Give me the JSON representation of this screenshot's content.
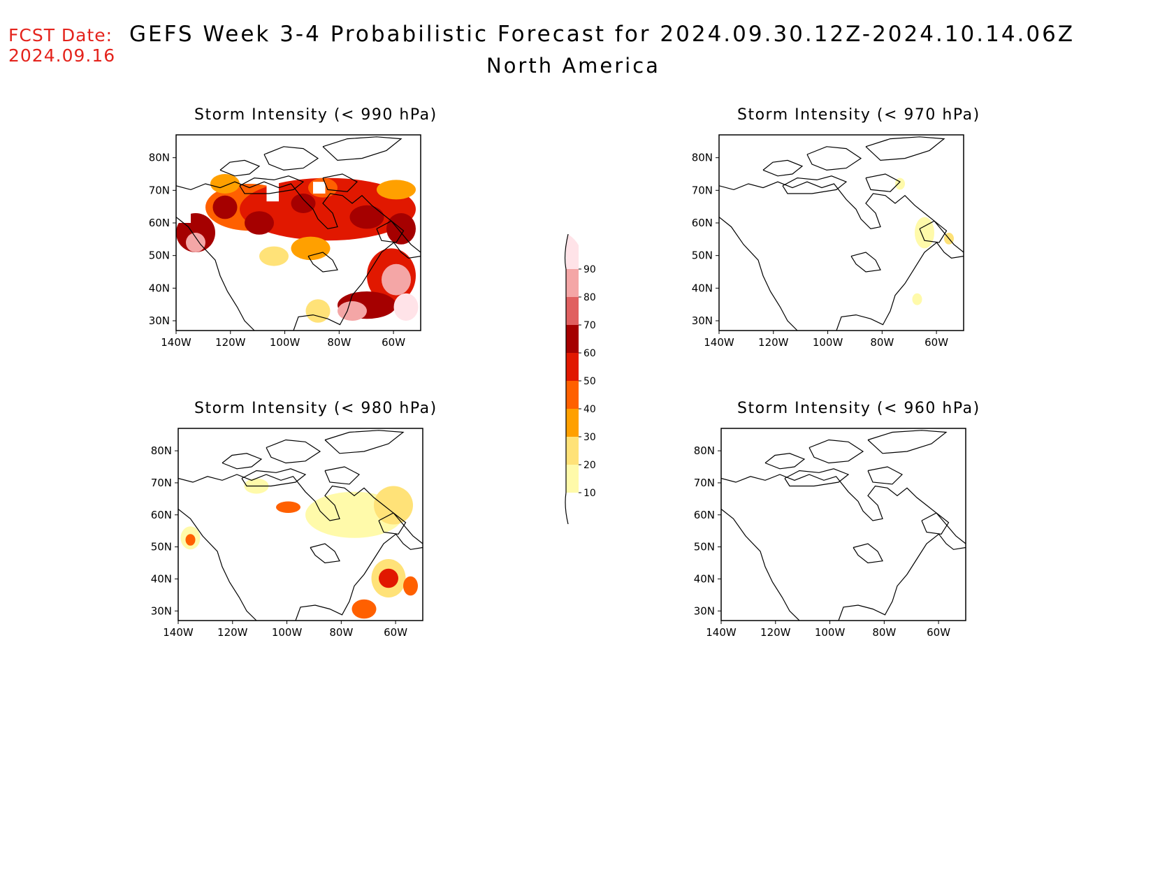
{
  "header": {
    "fcst_label": "FCST Date:",
    "fcst_date": "2024.09.16",
    "title": "GEFS Week 3-4 Probabilistic Forecast for 2024.09.30.12Z-2024.10.14.06Z",
    "subtitle": "North America"
  },
  "axes": {
    "lat_ticks": [
      "30N",
      "40N",
      "50N",
      "60N",
      "70N",
      "80N"
    ],
    "lon_ticks": [
      "140W",
      "120W",
      "100W",
      "80W",
      "60W"
    ]
  },
  "panels": [
    {
      "id": "p990",
      "title": "Storm Intensity (< 990 hPa)",
      "intensity": "high"
    },
    {
      "id": "p970",
      "title": "Storm Intensity (< 970 hPa)",
      "intensity": "low"
    },
    {
      "id": "p980",
      "title": "Storm Intensity (< 980 hPa)",
      "intensity": "medium"
    },
    {
      "id": "p960",
      "title": "Storm Intensity (< 960 hPa)",
      "intensity": "none"
    }
  ],
  "colorbar": {
    "levels": [
      "10",
      "20",
      "30",
      "40",
      "50",
      "60",
      "70",
      "80",
      "90"
    ],
    "colors": [
      "#fffaaa",
      "#ffe278",
      "#ffa000",
      "#ff6000",
      "#e11800",
      "#a50000",
      "#e06060",
      "#f4a6a6",
      "#ffe3e8"
    ]
  }
}
